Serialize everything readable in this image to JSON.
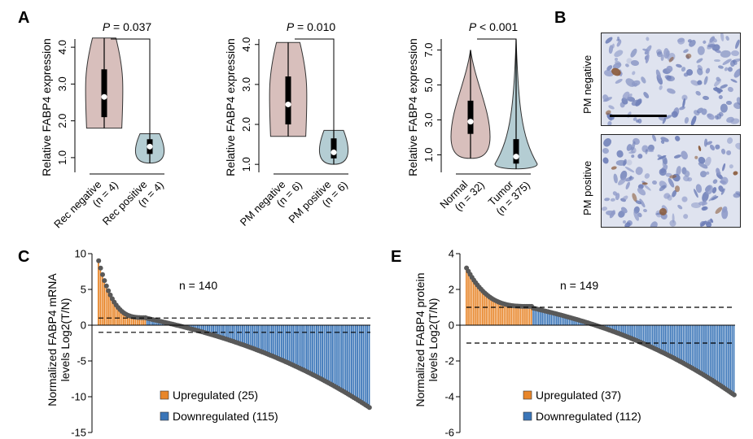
{
  "panel_labels": {
    "a": "A",
    "b": "B",
    "c": "C",
    "e": "E"
  },
  "colors": {
    "violin_pink": "#d8bfbc",
    "violin_blue": "#b4cdd3",
    "upregulated": "#e8862a",
    "downregulated": "#3a75b8",
    "dot": "#595959"
  },
  "chart_data": [
    {
      "type": "violin",
      "panel": "A",
      "ylabel": "Relative FABP4 expression",
      "yticks": [
        "1.0",
        "2.0",
        "3.0",
        "4.0"
      ],
      "ylim": [
        0.6,
        4.4
      ],
      "p_label": "P = 0.037",
      "categories": [
        "Rec negative\n(n = 4)",
        "Rec positive\n(n = 4)"
      ],
      "series": [
        {
          "range": [
            1.8,
            4.25
          ],
          "q1": 2.1,
          "median": 2.65,
          "q3": 3.4
        },
        {
          "range": [
            0.85,
            1.65
          ],
          "q1": 1.1,
          "median": 1.3,
          "q3": 1.5
        }
      ]
    },
    {
      "type": "violin",
      "panel": "A",
      "ylabel": "Relative FABP4 expression",
      "yticks": [
        "1.0",
        "2.0",
        "3.0",
        "4.0"
      ],
      "ylim": [
        0.8,
        4.3
      ],
      "p_label": "P = 0.010",
      "categories": [
        "PM negative\n(n = 6)",
        "PM positive\n(n = 6)"
      ],
      "series": [
        {
          "range": [
            1.7,
            4.05
          ],
          "q1": 2.0,
          "median": 2.5,
          "q3": 3.2
        },
        {
          "range": [
            1.0,
            1.85
          ],
          "q1": 1.15,
          "median": 1.3,
          "q3": 1.65
        }
      ]
    },
    {
      "type": "violin",
      "panel": "A",
      "ylabel": "Relative FABP4 expression",
      "yticks": [
        "1.0",
        "3.0",
        "5.0",
        "7.0"
      ],
      "ylim": [
        0.0,
        8.0
      ],
      "p_label": "P < 0.001",
      "categories": [
        "Normal\n(n = 32)",
        "Tumor\n(n = 375)"
      ],
      "series": [
        {
          "range": [
            0.8,
            7.0
          ],
          "q1": 2.2,
          "median": 2.9,
          "q3": 4.1
        },
        {
          "range": [
            0.2,
            7.6
          ],
          "q1": 0.5,
          "median": 0.9,
          "q3": 1.9
        }
      ]
    },
    {
      "type": "bar",
      "panel": "C",
      "ylabel": "Normalized FABP4 mRNA\nlevels Log2(T/N)",
      "ylim": [
        -15,
        10
      ],
      "yticks": [
        "-15",
        "-10",
        "-5",
        "0",
        "5",
        "10"
      ],
      "annotation": "n = 140",
      "n": 140,
      "thresholds": [
        1,
        -1
      ],
      "legend": [
        "Upregulated (25)",
        "Downregulated (115)"
      ],
      "up_count": 25,
      "max": 9.0,
      "min": -11.5
    },
    {
      "type": "bar",
      "panel": "E",
      "ylabel": "Normalized FABP4 protein\nlevels Log2(T/N)",
      "ylim": [
        -6,
        4
      ],
      "yticks": [
        "-6",
        "-4",
        "-2",
        "0",
        "2",
        "4"
      ],
      "annotation": "n = 149",
      "n": 149,
      "thresholds": [
        1,
        -1
      ],
      "legend": [
        "Upregulated (37)",
        "Downregulated (112)"
      ],
      "up_count": 37,
      "max": 3.2,
      "min": -3.9
    }
  ],
  "ihc": {
    "labels": [
      "PM negative",
      "PM positive"
    ]
  }
}
